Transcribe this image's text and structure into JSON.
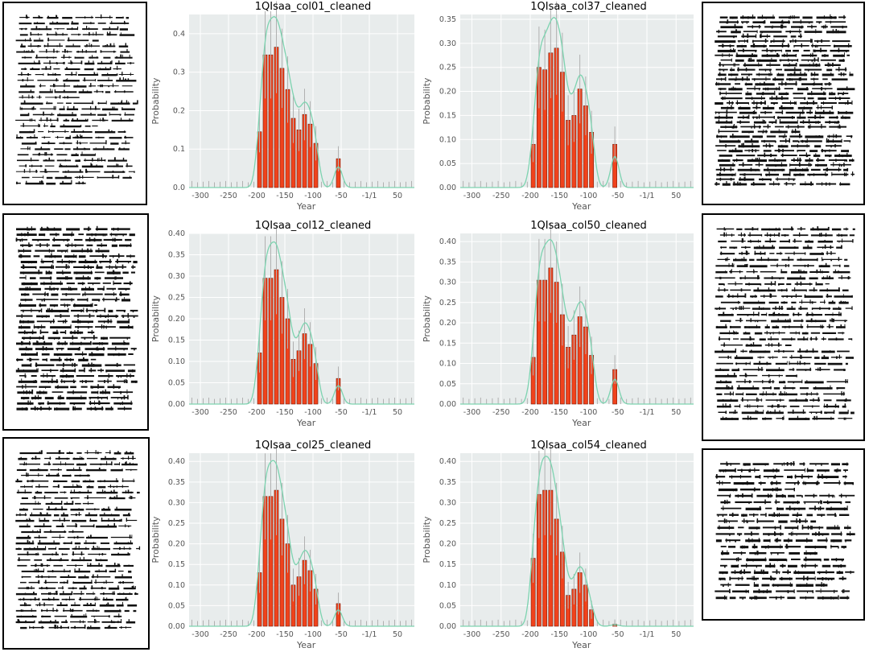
{
  "colors": {
    "bar": "#f0421c",
    "bar_edge": "#7a1e0c",
    "kde": "#7dd3b0",
    "errorbar": "#b0b0b0",
    "panel_bg": "#e8ecec",
    "grid": "#ffffff"
  },
  "x_tick_labels": [
    "-300",
    "-250",
    "-200",
    "-150",
    "-100",
    "-50",
    "-1/1",
    "50"
  ],
  "chart_data": [
    {
      "type": "bar",
      "title": "1QIsaa_col01_cleaned",
      "xlabel": "Year",
      "ylabel": "Probability",
      "xlim": [
        -320,
        80
      ],
      "ylim": [
        0,
        0.45
      ],
      "yticks": [
        0.0,
        0.1,
        0.2,
        0.3,
        0.4
      ],
      "ytick_labels": [
        "0.0",
        "0.1",
        "0.2",
        "0.3",
        "0.4"
      ],
      "x": [
        -195,
        -185,
        -175,
        -165,
        -155,
        -145,
        -135,
        -125,
        -115,
        -105,
        -95,
        -55
      ],
      "values": [
        0.145,
        0.345,
        0.345,
        0.365,
        0.31,
        0.255,
        0.18,
        0.15,
        0.19,
        0.165,
        0.115,
        0.075
      ]
    },
    {
      "type": "bar",
      "title": "1QIsaa_col37_cleaned",
      "xlabel": "Year",
      "ylabel": "Probability",
      "xlim": [
        -320,
        80
      ],
      "ylim": [
        0,
        0.36
      ],
      "yticks": [
        0.0,
        0.05,
        0.1,
        0.15,
        0.2,
        0.25,
        0.3,
        0.35
      ],
      "ytick_labels": [
        "0.00",
        "0.05",
        "0.10",
        "0.15",
        "0.20",
        "0.25",
        "0.30",
        "0.35"
      ],
      "x": [
        -195,
        -185,
        -175,
        -165,
        -155,
        -145,
        -135,
        -125,
        -115,
        -105,
        -95,
        -55
      ],
      "values": [
        0.09,
        0.25,
        0.245,
        0.28,
        0.29,
        0.24,
        0.14,
        0.15,
        0.205,
        0.17,
        0.115,
        0.09
      ]
    },
    {
      "type": "bar",
      "title": "1QIsaa_col12_cleaned",
      "xlabel": "Year",
      "ylabel": "Probability",
      "xlim": [
        -320,
        80
      ],
      "ylim": [
        0,
        0.4
      ],
      "yticks": [
        0.0,
        0.05,
        0.1,
        0.15,
        0.2,
        0.25,
        0.3,
        0.35,
        0.4
      ],
      "ytick_labels": [
        "0.00",
        "0.05",
        "0.10",
        "0.15",
        "0.20",
        "0.25",
        "0.30",
        "0.35",
        "0.40"
      ],
      "x": [
        -195,
        -185,
        -175,
        -165,
        -155,
        -145,
        -135,
        -125,
        -115,
        -105,
        -95,
        -55
      ],
      "values": [
        0.12,
        0.295,
        0.295,
        0.315,
        0.25,
        0.2,
        0.105,
        0.125,
        0.165,
        0.14,
        0.095,
        0.06
      ]
    },
    {
      "type": "bar",
      "title": "1QIsaa_col50_cleaned",
      "xlabel": "Year",
      "ylabel": "Probability",
      "xlim": [
        -320,
        80
      ],
      "ylim": [
        0,
        0.42
      ],
      "yticks": [
        0.0,
        0.05,
        0.1,
        0.15,
        0.2,
        0.25,
        0.3,
        0.35,
        0.4
      ],
      "ytick_labels": [
        "0.00",
        "0.05",
        "0.10",
        "0.15",
        "0.20",
        "0.25",
        "0.30",
        "0.35",
        "0.40"
      ],
      "x": [
        -195,
        -185,
        -175,
        -165,
        -155,
        -145,
        -135,
        -125,
        -115,
        -105,
        -95,
        -55
      ],
      "values": [
        0.115,
        0.305,
        0.305,
        0.335,
        0.3,
        0.22,
        0.14,
        0.17,
        0.215,
        0.19,
        0.12,
        0.085
      ]
    },
    {
      "type": "bar",
      "title": "1QIsaa_col25_cleaned",
      "xlabel": "Year",
      "ylabel": "Probability",
      "xlim": [
        -320,
        80
      ],
      "ylim": [
        0,
        0.42
      ],
      "yticks": [
        0.0,
        0.05,
        0.1,
        0.15,
        0.2,
        0.25,
        0.3,
        0.35,
        0.4
      ],
      "ytick_labels": [
        "0.00",
        "0.05",
        "0.10",
        "0.15",
        "0.20",
        "0.25",
        "0.30",
        "0.35",
        "0.40"
      ],
      "x": [
        -195,
        -185,
        -175,
        -165,
        -155,
        -145,
        -135,
        -125,
        -115,
        -105,
        -95,
        -55
      ],
      "values": [
        0.13,
        0.315,
        0.315,
        0.33,
        0.26,
        0.2,
        0.1,
        0.12,
        0.16,
        0.135,
        0.09,
        0.055
      ]
    },
    {
      "type": "bar",
      "title": "1QIsaa_col54_cleaned",
      "xlabel": "Year",
      "ylabel": "Probability",
      "xlim": [
        -320,
        80
      ],
      "ylim": [
        0,
        0.42
      ],
      "yticks": [
        0.0,
        0.05,
        0.1,
        0.15,
        0.2,
        0.25,
        0.3,
        0.35,
        0.4
      ],
      "ytick_labels": [
        "0.00",
        "0.05",
        "0.10",
        "0.15",
        "0.20",
        "0.25",
        "0.30",
        "0.35",
        "0.40"
      ],
      "x": [
        -195,
        -185,
        -175,
        -165,
        -155,
        -145,
        -135,
        -125,
        -115,
        -105,
        -95,
        -55
      ],
      "values": [
        0.165,
        0.32,
        0.33,
        0.33,
        0.26,
        0.18,
        0.075,
        0.09,
        0.13,
        0.1,
        0.04,
        0.005
      ]
    }
  ]
}
